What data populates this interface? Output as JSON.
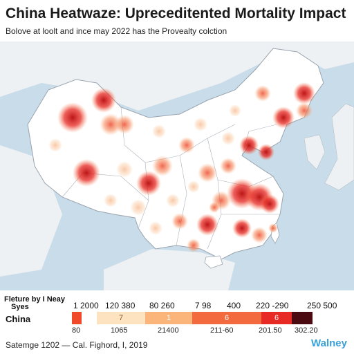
{
  "title": "China Heatwaze: Upreceditented Mortality Impact",
  "subtitle": "Bolove at loolt and ince may 2022 has the Provealty colction",
  "legend": {
    "label_line1": "Fleture by I Neay",
    "label_line2": "Syes",
    "region": "China",
    "ranges": [
      "1 2000",
      "120 380",
      "80 260",
      "7 98",
      "400",
      "220 -290",
      "250 500"
    ],
    "swatches": [
      {
        "label": "",
        "color": "#f04a2a"
      },
      {
        "label": "7",
        "color": "#fde3c0"
      },
      {
        "label": "1",
        "color": "#fbb57a"
      },
      {
        "label": "6",
        "color": "#f26a3e"
      },
      {
        "label": "6",
        "color": "#e82a24"
      },
      {
        "label": "",
        "color": "#4a0a10"
      }
    ],
    "values": [
      "80",
      "1065",
      "21400",
      "211-60",
      "201.50",
      "302.20"
    ]
  },
  "source": "Satemge 1202 — Cal. Fighord, I, 2019",
  "brand": "Walney",
  "colors": {
    "land": "#ffffff",
    "sea": "#c9dcea",
    "border": "#9aa4ae",
    "hotspot_low": "#fbd3b0",
    "hotspot_mid": "#f47a4a",
    "hotspot_high": "#d41414"
  }
}
